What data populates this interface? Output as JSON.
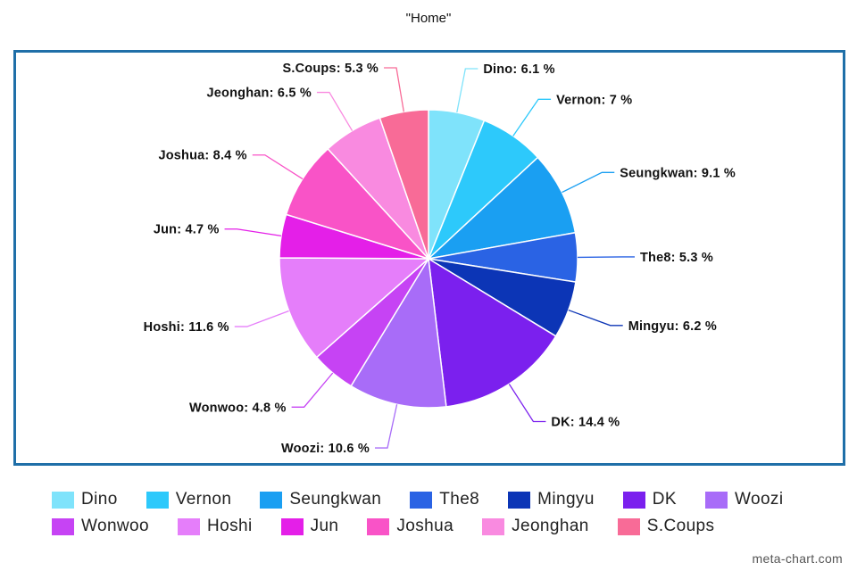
{
  "chart_data": {
    "type": "pie",
    "title": "\"Home\"",
    "series": [
      {
        "label": "Dino",
        "value": 6.1,
        "color": "#7fe3fb"
      },
      {
        "label": "Vernon",
        "value": 7,
        "color": "#2dc9fb"
      },
      {
        "label": "Seungkwan",
        "value": 9.1,
        "color": "#1a9ff2"
      },
      {
        "label": "The8",
        "value": 5.3,
        "color": "#2a63e4"
      },
      {
        "label": "Mingyu",
        "value": 6.2,
        "color": "#0c35b6"
      },
      {
        "label": "DK",
        "value": 14.4,
        "color": "#7b20ee"
      },
      {
        "label": "Woozi",
        "value": 10.6,
        "color": "#a86cf8"
      },
      {
        "label": "Wonwoo",
        "value": 4.8,
        "color": "#c643f4"
      },
      {
        "label": "Hoshi",
        "value": 11.6,
        "color": "#e57efa"
      },
      {
        "label": "Jun",
        "value": 4.7,
        "color": "#e41fe8"
      },
      {
        "label": "Joshua",
        "value": 8.4,
        "color": "#f953c7"
      },
      {
        "label": "Jeonghan",
        "value": 6.5,
        "color": "#f98ae0"
      },
      {
        "label": "S.Coups",
        "value": 5.3,
        "color": "#f86b97"
      }
    ],
    "unit": "%",
    "legend_position": "bottom"
  },
  "legend_rows": [
    [
      "Dino",
      "Vernon",
      "Seungkwan",
      "The8",
      "Mingyu",
      "DK",
      "Woozi"
    ],
    [
      "Wonwoo",
      "Hoshi",
      "Jun",
      "Joshua",
      "Jeonghan",
      "S.Coups"
    ]
  ],
  "watermark": "meta-chart.com"
}
